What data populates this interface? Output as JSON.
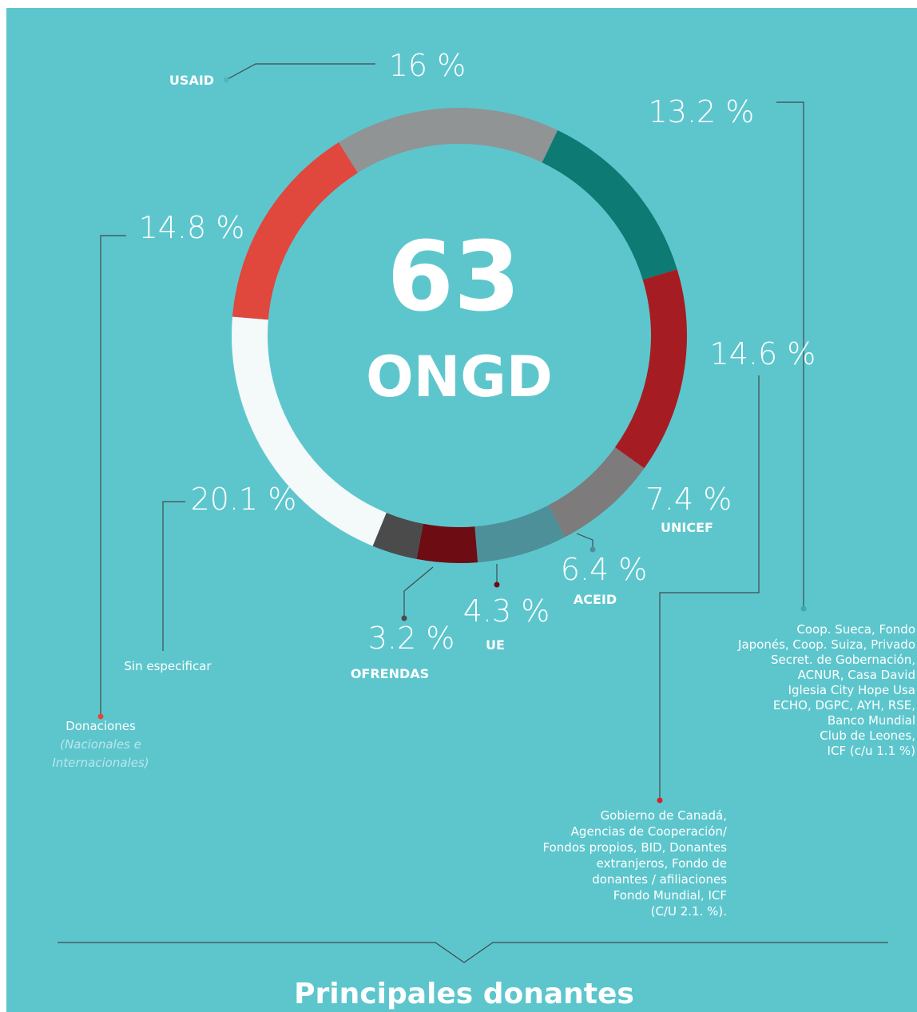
{
  "chart_data": {
    "type": "donut",
    "title": "Principales donantes",
    "center_value": 63,
    "center_label": "ONGD",
    "categories": [
      "USAID",
      null,
      null,
      "UNICEF",
      "ACEID",
      "UE",
      "OFRENDAS",
      "Sin especificar",
      "Donaciones"
    ],
    "values": [
      16,
      13.2,
      14.6,
      7.4,
      6.4,
      4.3,
      3.2,
      20.1,
      14.8
    ],
    "value_labels": [
      "16 %",
      "13.2 %",
      "14.6 %",
      "7.4 %",
      "6.4 %",
      "4.3 %",
      "3.2 %",
      "20.1 %",
      "14.8 %"
    ],
    "colors": [
      "#909495",
      "#0e7a74",
      "#a51d22",
      "#7d7b7b",
      "#4e9099",
      "#6d0c13",
      "#4b4b4b",
      "#f4f9fa",
      "#e0473d"
    ],
    "notes": {
      "1": [
        "Coop. Sueca, Fondo",
        "Japonés, Coop. Suiza, Privado",
        "Secret. de Gobernación,",
        "ACNUR, Casa David",
        "Iglesia City Hope Usa",
        "ECHO, DGPC, AYH, RSE,",
        "Banco Mundial",
        "Club de Leones,",
        "ICF (c/u 1.1 %)"
      ],
      "2": [
        "Gobierno de Canadá,",
        "Agencias de Cooperación/",
        "Fondos propios, BID, Donantes",
        "extranjeros, Fondo de",
        "donantes / afiliaciones",
        "Fondo Mundial, ICF",
        "(C/U 2.1. %)."
      ],
      "8": [
        "(Nacionales e",
        "Internacionales)"
      ]
    }
  }
}
